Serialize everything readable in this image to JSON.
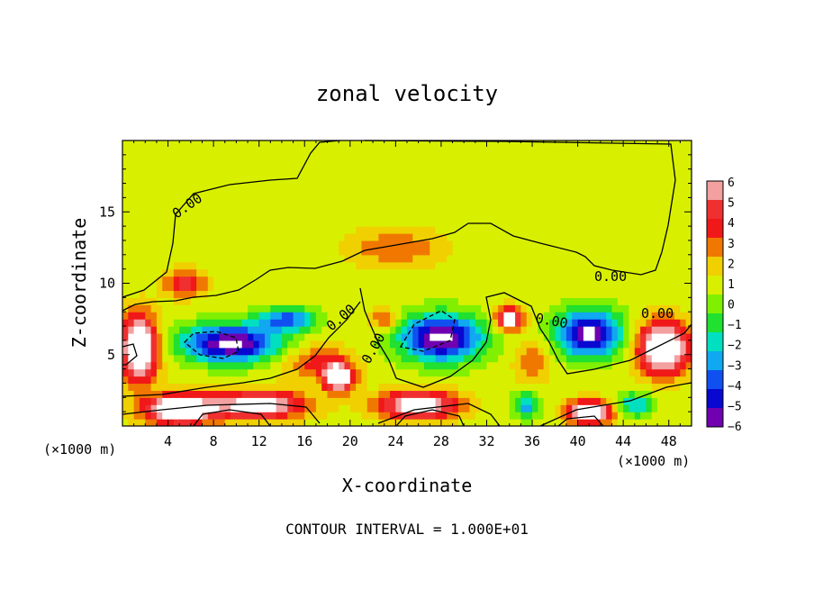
{
  "chart_data": {
    "type": "heatmap",
    "title": "zonal velocity",
    "xlabel": "X-coordinate",
    "ylabel": "Z-coordinate",
    "x_unit": "(×1000 m)",
    "y_unit": "(×1000 m)",
    "footer": "CONTOUR INTERVAL = 1.000E+01",
    "x_ticks": [
      "4",
      "8",
      "12",
      "16",
      "20",
      "24",
      "28",
      "32",
      "36",
      "40",
      "44",
      "48"
    ],
    "y_ticks": [
      "5",
      "10",
      "15"
    ],
    "xlim": [
      0,
      50
    ],
    "ylim": [
      0,
      20
    ],
    "colorbar": {
      "labels": [
        "6",
        "5",
        "4",
        "3",
        "2",
        "1",
        "0",
        "−1",
        "−2",
        "−3",
        "−4",
        "−5",
        "−6"
      ],
      "colors": [
        "#f2a0a0",
        "#f03030",
        "#f01818",
        "#f07800",
        "#f0d000",
        "#d8f000",
        "#80f000",
        "#20e030",
        "#00e0c0",
        "#10a8f0",
        "#1050f0",
        "#0808d0",
        "#7000b0"
      ]
    },
    "contour_labels": [
      "0.00",
      "0.00",
      "0.00",
      "0.00",
      "0.00",
      "0.00"
    ],
    "background_value": 1,
    "features": [
      {
        "x": 24,
        "z": 12.5,
        "value": 2.5,
        "spread": [
          4,
          1.3
        ]
      },
      {
        "x": 5.5,
        "z": 10.0,
        "value": 4.2,
        "spread": [
          1.8,
          0.9
        ]
      },
      {
        "x": 12,
        "z": 13,
        "value": 0.2,
        "spread": [
          4,
          2
        ]
      },
      {
        "x": 40,
        "z": 14,
        "value": 0.5,
        "spread": [
          6,
          3
        ]
      },
      {
        "x": 9.5,
        "z": 5.8,
        "value": -8,
        "spread": [
          4.2,
          1.3
        ]
      },
      {
        "x": 14.5,
        "z": 7.5,
        "value": -5,
        "spread": [
          2.5,
          0.8
        ]
      },
      {
        "x": 28,
        "z": 6.2,
        "value": -8,
        "spread": [
          3.6,
          1.6
        ]
      },
      {
        "x": 41,
        "z": 6.5,
        "value": -8,
        "spread": [
          2.8,
          1.6
        ]
      },
      {
        "x": 35.5,
        "z": 1.5,
        "value": -4,
        "spread": [
          1.2,
          0.9
        ]
      },
      {
        "x": 45,
        "z": 1.5,
        "value": -4,
        "spread": [
          1.5,
          0.8
        ]
      },
      {
        "x": 1.5,
        "z": 5.5,
        "value": 9,
        "spread": [
          1.6,
          2.2
        ]
      },
      {
        "x": 47.5,
        "z": 5.5,
        "value": 9,
        "spread": [
          2.2,
          1.8
        ]
      },
      {
        "x": 34,
        "z": 7.5,
        "value": 7,
        "spread": [
          1.2,
          0.8
        ]
      },
      {
        "x": 19,
        "z": 3.4,
        "value": 8,
        "spread": [
          1.3,
          1
        ]
      },
      {
        "x": 5,
        "z": 1.2,
        "value": 9,
        "spread": [
          3,
          1
        ]
      },
      {
        "x": 12,
        "z": 1.5,
        "value": 7,
        "spread": [
          4,
          1
        ]
      },
      {
        "x": 26,
        "z": 1.5,
        "value": 7,
        "spread": [
          3.5,
          1
        ]
      },
      {
        "x": 41,
        "z": 1.0,
        "value": 8,
        "spread": [
          2,
          0.8
        ]
      },
      {
        "x": 17,
        "z": 4.5,
        "value": 3,
        "spread": [
          3,
          1.2
        ]
      },
      {
        "x": 23,
        "z": 7.5,
        "value": 3,
        "spread": [
          1.2,
          0.8
        ]
      },
      {
        "x": 36,
        "z": 4.5,
        "value": 2.5,
        "spread": [
          1.5,
          1.5
        ]
      }
    ]
  }
}
